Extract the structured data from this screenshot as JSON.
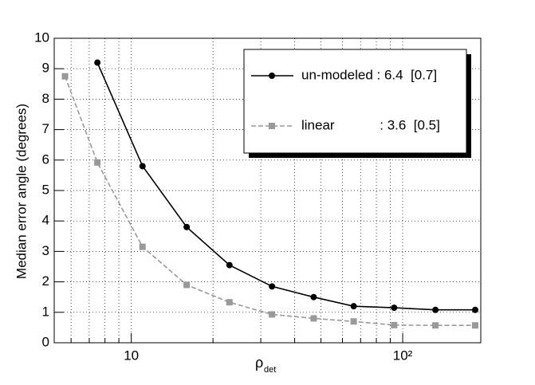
{
  "chart_data": {
    "type": "line",
    "y_label": "Median error angle (degrees)",
    "x_label": "ρ",
    "x_label_subscript": "det",
    "log_x": true,
    "grid": true,
    "x": [
      5.7,
      7.5,
      11,
      16,
      23,
      33,
      47,
      66,
      93,
      132,
      185
    ],
    "series": [
      {
        "name": "un-modeled : 6.4  [0.7]",
        "color": "#000000",
        "marker": "circle",
        "dashed": false,
        "values": [
          null,
          9.2,
          5.8,
          3.8,
          2.55,
          1.85,
          1.5,
          1.2,
          1.15,
          1.08,
          1.08
        ]
      },
      {
        "name": "linear            : 3.6  [0.5]",
        "color": "#999999",
        "marker": "square",
        "dashed": true,
        "values": [
          8.75,
          5.92,
          3.15,
          1.9,
          1.33,
          0.93,
          0.8,
          0.7,
          0.58,
          0.57,
          0.57
        ]
      }
    ],
    "xlim": [
      5.2,
      194
    ],
    "ylim": [
      0,
      10
    ],
    "xticks": [
      10,
      {
        "value": 100,
        "label": "10²"
      }
    ],
    "xminor": [
      6,
      7,
      8,
      9,
      20,
      30,
      40,
      50,
      60,
      70,
      80,
      90
    ],
    "yticks": [
      0,
      1,
      2,
      3,
      4,
      5,
      6,
      7,
      8,
      9,
      10
    ]
  }
}
